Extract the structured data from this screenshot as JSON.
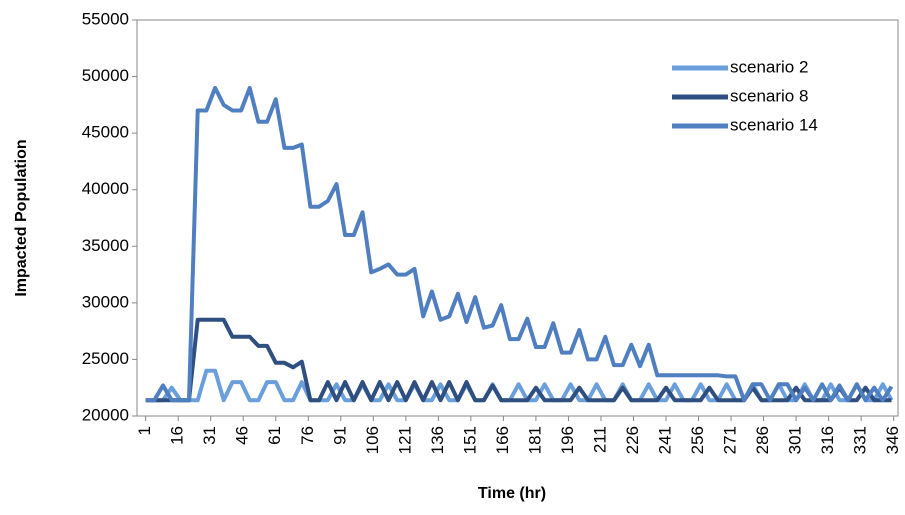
{
  "chart_data": {
    "type": "line",
    "x_label": "Time (hr)",
    "y_label": "Impacted Population",
    "x": [
      1,
      5,
      9,
      13,
      17,
      21,
      25,
      29,
      33,
      37,
      41,
      45,
      49,
      53,
      57,
      61,
      65,
      69,
      73,
      77,
      81,
      85,
      89,
      93,
      97,
      101,
      105,
      109,
      113,
      117,
      121,
      125,
      129,
      133,
      137,
      141,
      145,
      149,
      153,
      157,
      161,
      165,
      169,
      173,
      177,
      181,
      185,
      189,
      193,
      197,
      201,
      205,
      209,
      213,
      217,
      221,
      225,
      229,
      233,
      237,
      241,
      245,
      249,
      253,
      257,
      261,
      265,
      269,
      273,
      277,
      281,
      285,
      289,
      293,
      297,
      301,
      305,
      309,
      313,
      317,
      321,
      325,
      329,
      333,
      337,
      341,
      345
    ],
    "xlim": [
      -3,
      348
    ],
    "xticks": [
      1,
      16,
      31,
      46,
      61,
      76,
      91,
      106,
      121,
      136,
      151,
      166,
      181,
      196,
      211,
      226,
      241,
      256,
      271,
      286,
      301,
      316,
      331,
      346
    ],
    "ylim": [
      20000,
      55000
    ],
    "yticks": [
      20000,
      25000,
      30000,
      35000,
      40000,
      45000,
      50000,
      55000
    ],
    "grid": false,
    "legend": "upper right",
    "series": [
      {
        "name": "scenario 2",
        "color": "#6a9fdc",
        "values": [
          21400,
          21400,
          21400,
          22500,
          21400,
          21400,
          21400,
          24000,
          24000,
          21400,
          23000,
          23000,
          21400,
          21400,
          23000,
          23000,
          21400,
          21400,
          23000,
          21400,
          21400,
          21400,
          22800,
          21400,
          21400,
          22800,
          21400,
          21400,
          22800,
          21400,
          21400,
          22800,
          21400,
          21400,
          22800,
          21400,
          21400,
          22800,
          21400,
          21400,
          22800,
          21400,
          21400,
          22800,
          21400,
          21400,
          22800,
          21400,
          21400,
          22800,
          21400,
          21400,
          22800,
          21400,
          21400,
          22800,
          21400,
          21400,
          22800,
          21400,
          21400,
          22800,
          21400,
          21400,
          22800,
          21400,
          21400,
          22800,
          21400,
          21400,
          22800,
          21400,
          21400,
          22800,
          21400,
          21400,
          22800,
          21400,
          21400,
          22800,
          21400,
          21400,
          22800,
          21400,
          21400,
          22800,
          21400
        ]
      },
      {
        "name": "scenario 8",
        "color": "#2e4f7f",
        "values": [
          21400,
          21400,
          21400,
          21400,
          21400,
          21400,
          28500,
          28500,
          28500,
          28500,
          27000,
          27000,
          27000,
          26200,
          26200,
          24700,
          24700,
          24300,
          24800,
          21400,
          21400,
          23000,
          21400,
          23000,
          21400,
          23000,
          21400,
          23000,
          21400,
          23000,
          21400,
          23000,
          21400,
          23000,
          21400,
          23000,
          21400,
          23000,
          21400,
          21400,
          22700,
          21400,
          21400,
          21400,
          21400,
          22500,
          21400,
          21400,
          21400,
          21400,
          22500,
          21400,
          21400,
          21400,
          21400,
          22500,
          21400,
          21400,
          21400,
          21400,
          22500,
          21400,
          21400,
          21400,
          21400,
          22500,
          21400,
          21400,
          21400,
          21400,
          22500,
          21400,
          21400,
          21400,
          21400,
          22500,
          21400,
          21400,
          21400,
          21400,
          22500,
          21400,
          21400,
          22500,
          21400,
          21400,
          21400
        ]
      },
      {
        "name": "scenario 14",
        "color": "#4f7fc0",
        "values": [
          21400,
          21400,
          22700,
          21400,
          21400,
          21400,
          47000,
          47000,
          49000,
          47500,
          47000,
          47000,
          49000,
          46000,
          46000,
          48000,
          43700,
          43700,
          44000,
          38500,
          38500,
          39000,
          40500,
          36000,
          36000,
          38000,
          32700,
          33000,
          33400,
          32500,
          32500,
          33000,
          28800,
          31000,
          28500,
          28800,
          30800,
          28300,
          30500,
          27800,
          28000,
          29800,
          26800,
          26800,
          28600,
          26100,
          26100,
          28200,
          25600,
          25600,
          27600,
          25000,
          25000,
          27000,
          24500,
          24500,
          26300,
          24400,
          26300,
          23600,
          23600,
          23600,
          23600,
          23600,
          23600,
          23600,
          23600,
          23500,
          23500,
          21400,
          22800,
          22800,
          21400,
          22800,
          22800,
          21400,
          22500,
          21400,
          22800,
          21400,
          22700,
          21400,
          22800,
          21400,
          22500,
          21400,
          22600
        ]
      }
    ]
  }
}
